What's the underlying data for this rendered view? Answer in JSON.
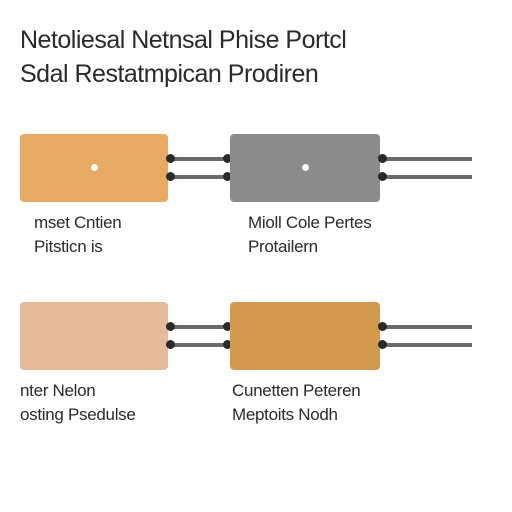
{
  "title": {
    "line1": "Netoliesal Netnsal Phise Portcl",
    "line2": "Sdal Restatmpican Prodiren"
  },
  "diagram": {
    "type": "flowchart",
    "background_color": "#ffffff",
    "text_color": "#2a2a2a",
    "rail_color": "#6a6a6a",
    "joint_color": "#2a2a2a",
    "dot_color": "#ffffff",
    "rows": [
      {
        "leading_connector_width": 0,
        "box_a": {
          "width": 148,
          "fill": "#e7aa62",
          "has_dot": true
        },
        "mid_connector_width": 62,
        "box_b": {
          "width": 150,
          "fill": "#8b8b8b",
          "has_dot": true
        },
        "trailing_connector_width": 92,
        "labels": {
          "left": {
            "line1": "mset Cntien",
            "line2": "Pitsticn is",
            "offset": 14
          },
          "right": {
            "line1": "Mioll Cole Pertes",
            "line2": "Protailern",
            "offset": 228
          }
        }
      },
      {
        "leading_connector_width": 0,
        "box_a": {
          "width": 148,
          "fill": "#e4bb98",
          "has_dot": false
        },
        "mid_connector_width": 62,
        "box_b": {
          "width": 150,
          "fill": "#d39a4e",
          "has_dot": false
        },
        "trailing_connector_width": 92,
        "labels": {
          "left": {
            "line1": "nter Nelon",
            "line2": "osting Psedulse",
            "offset": 0
          },
          "right": {
            "line1": "Cunetten Peteren",
            "line2": "Meptoits Nodh",
            "offset": 212
          }
        }
      }
    ]
  }
}
